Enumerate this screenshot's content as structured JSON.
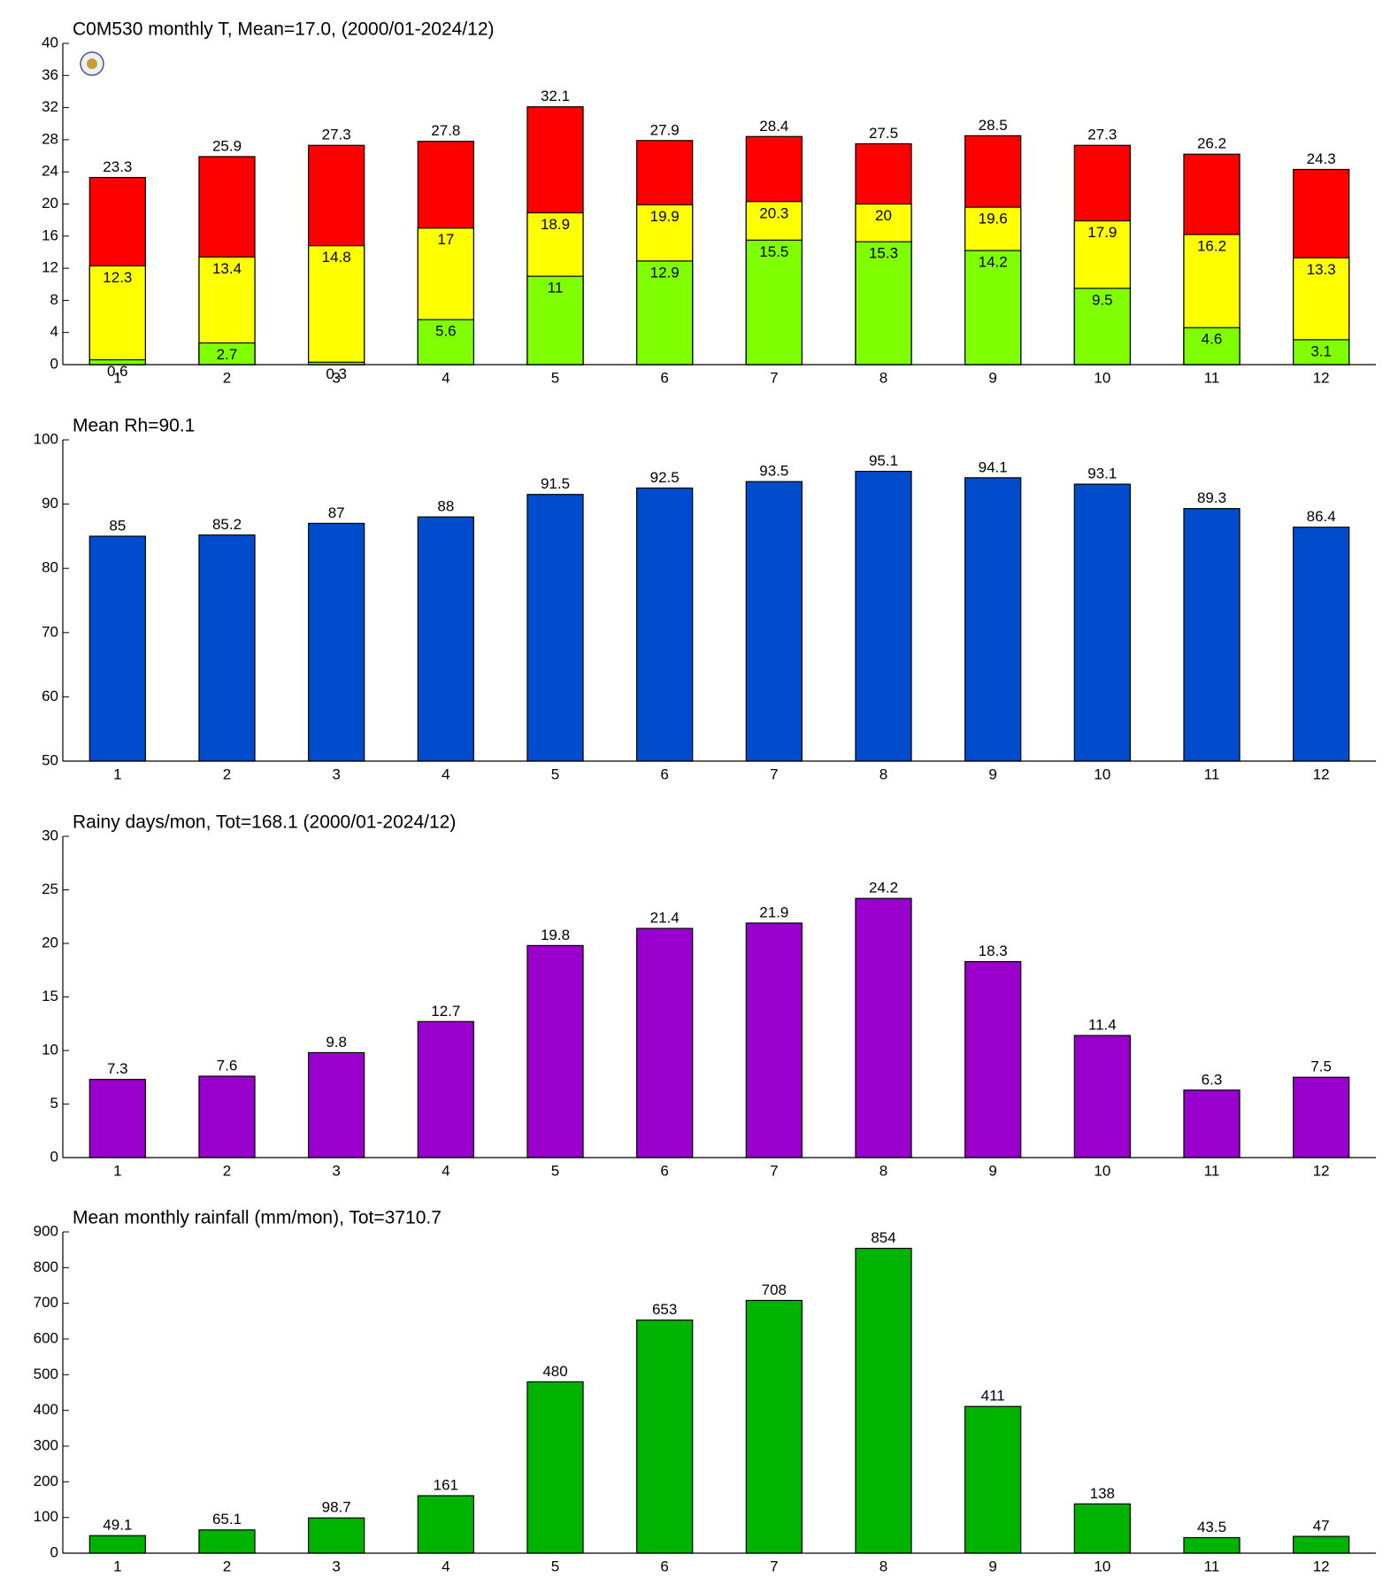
{
  "chart_data": [
    {
      "type": "bar",
      "title": "C0M530 monthly T, Mean=17.0, (2000/01-2024/12)",
      "categories": [
        "1",
        "2",
        "3",
        "4",
        "5",
        "6",
        "7",
        "8",
        "9",
        "10",
        "11",
        "12"
      ],
      "series": [
        {
          "color": "#ff0000",
          "values": [
            23.3,
            25.9,
            27.3,
            27.8,
            32.1,
            27.9,
            28.4,
            27.5,
            28.5,
            27.3,
            26.2,
            24.3
          ]
        },
        {
          "color": "#ffff00",
          "values": [
            12.3,
            13.4,
            14.8,
            17,
            18.9,
            19.9,
            20.3,
            20,
            19.6,
            17.9,
            16.2,
            13.3
          ]
        },
        {
          "color": "#80ff00",
          "values": [
            0.6,
            2.7,
            0.3,
            5.6,
            11,
            12.9,
            15.5,
            15.3,
            14.2,
            9.5,
            4.6,
            3.1
          ]
        }
      ],
      "ylim": [
        0,
        40
      ],
      "yticks": [
        0,
        4,
        8,
        12,
        16,
        20,
        24,
        28,
        32,
        36,
        40
      ]
    },
    {
      "type": "bar",
      "title": "Mean Rh=90.1",
      "categories": [
        "1",
        "2",
        "3",
        "4",
        "5",
        "6",
        "7",
        "8",
        "9",
        "10",
        "11",
        "12"
      ],
      "series": [
        {
          "color": "#004ccc",
          "values": [
            85,
            85.2,
            87,
            88,
            91.5,
            92.5,
            93.5,
            95.1,
            94.1,
            93.1,
            89.3,
            86.4
          ]
        }
      ],
      "ylim": [
        50,
        100
      ],
      "yticks": [
        50,
        60,
        70,
        80,
        90,
        100
      ]
    },
    {
      "type": "bar",
      "title": "Rainy days/mon, Tot=168.1 (2000/01-2024/12)",
      "categories": [
        "1",
        "2",
        "3",
        "4",
        "5",
        "6",
        "7",
        "8",
        "9",
        "10",
        "11",
        "12"
      ],
      "series": [
        {
          "color": "#9900cc",
          "values": [
            7.3,
            7.6,
            9.8,
            12.7,
            19.8,
            21.4,
            21.9,
            24.2,
            18.3,
            11.4,
            6.3,
            7.5
          ]
        }
      ],
      "ylim": [
        0,
        30
      ],
      "yticks": [
        0,
        5,
        10,
        15,
        20,
        25,
        30
      ]
    },
    {
      "type": "bar",
      "title": "Mean monthly rainfall (mm/mon), Tot=3710.7",
      "categories": [
        "1",
        "2",
        "3",
        "4",
        "5",
        "6",
        "7",
        "8",
        "9",
        "10",
        "11",
        "12"
      ],
      "series": [
        {
          "color": "#00b300",
          "values": [
            49.1,
            65.1,
            98.7,
            161,
            480,
            653,
            708,
            854,
            411,
            138,
            43.5,
            47
          ]
        }
      ],
      "ylim": [
        0,
        900
      ],
      "yticks": [
        0,
        100,
        200,
        300,
        400,
        500,
        600,
        700,
        800,
        900
      ]
    }
  ]
}
